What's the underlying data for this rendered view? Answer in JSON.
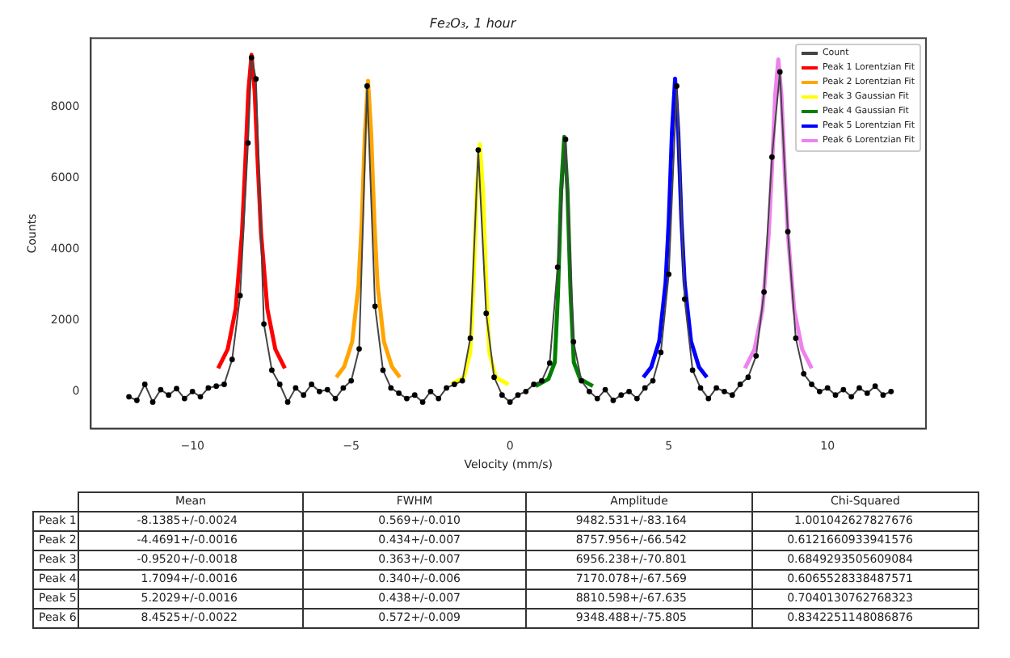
{
  "chart_data": {
    "type": "line",
    "title": "Fe₂O₃, 1 hour",
    "xlabel": "Velocity (mm/s)",
    "ylabel": "Counts",
    "xlim": [
      -13.2,
      13.1
    ],
    "ylim": [
      -1050,
      9950
    ],
    "xticks": [
      -10,
      -5,
      0,
      5,
      10
    ],
    "yticks": [
      0,
      2000,
      4000,
      6000,
      8000
    ],
    "grid": false,
    "legend": "top right",
    "line_style": "solid",
    "series": [
      {
        "name": "Count",
        "color": "#444444",
        "marker": "circle",
        "x": [
          -12,
          -11.75,
          -11.5,
          -11.25,
          -11,
          -10.75,
          -10.5,
          -10.25,
          -10,
          -9.75,
          -9.5,
          -9.25,
          -9,
          -8.75,
          -8.5,
          -8.25,
          -8.14,
          -8,
          -7.75,
          -7.5,
          -7.25,
          -7,
          -6.75,
          -6.5,
          -6.25,
          -6,
          -5.75,
          -5.5,
          -5.25,
          -5,
          -4.75,
          -4.5,
          -4.25,
          -4,
          -3.75,
          -3.5,
          -3.25,
          -3,
          -2.75,
          -2.5,
          -2.25,
          -2,
          -1.75,
          -1.5,
          -1.25,
          -1,
          -0.75,
          -0.5,
          -0.25,
          0,
          0.25,
          0.5,
          0.75,
          1,
          1.25,
          1.5,
          1.75,
          2,
          2.25,
          2.5,
          2.75,
          3,
          3.25,
          3.5,
          3.75,
          4,
          4.25,
          4.5,
          4.75,
          5,
          5.25,
          5.5,
          5.75,
          6,
          6.25,
          6.5,
          6.75,
          7,
          7.25,
          7.5,
          7.75,
          8,
          8.25,
          8.5,
          8.75,
          9,
          9.25,
          9.5,
          9.75,
          10,
          10.25,
          10.5,
          10.75,
          11,
          11.25,
          11.5,
          11.75,
          12
        ],
        "values": [
          -150,
          -250,
          200,
          -300,
          50,
          -100,
          80,
          -200,
          0,
          -150,
          100,
          150,
          200,
          900,
          2700,
          7000,
          9400,
          8800,
          1900,
          600,
          200,
          -300,
          100,
          -100,
          200,
          0,
          50,
          -200,
          100,
          300,
          1200,
          8600,
          2400,
          600,
          100,
          -50,
          -200,
          -100,
          -300,
          0,
          -200,
          100,
          200,
          300,
          1500,
          6800,
          2200,
          400,
          -100,
          -300,
          -100,
          0,
          200,
          300,
          800,
          3500,
          7100,
          1400,
          300,
          0,
          -200,
          50,
          -250,
          -100,
          0,
          -200,
          100,
          300,
          1100,
          3300,
          8600,
          2600,
          600,
          100,
          -200,
          100,
          0,
          -100,
          200,
          400,
          1000,
          2800,
          6600,
          9000,
          4500,
          1500,
          500,
          200,
          0,
          100,
          -100,
          50,
          -150,
          100,
          -50,
          150,
          -100,
          0
        ]
      },
      {
        "name": "Peak 1 Lorentzian Fit",
        "color": "#ff0000",
        "marker": "none",
        "x": [
          -9.19,
          -8.89,
          -8.64,
          -8.44,
          -8.34,
          -8.24,
          -8.14,
          -8.04,
          -7.94,
          -7.84,
          -7.64,
          -7.39,
          -7.09
        ],
        "values": [
          650,
          1190,
          2320,
          4460,
          6350,
          8440,
          9480,
          8440,
          6350,
          4460,
          2320,
          1190,
          650
        ]
      },
      {
        "name": "Peak 2 Lorentzian Fit",
        "color": "#ffa500",
        "marker": "none",
        "x": [
          -5.47,
          -5.22,
          -4.97,
          -4.77,
          -4.67,
          -4.57,
          -4.47,
          -4.37,
          -4.27,
          -4.17,
          -3.97,
          -3.72,
          -3.47
        ],
        "values": [
          400,
          700,
          1400,
          3000,
          4750,
          7250,
          8750,
          7250,
          4750,
          3000,
          1400,
          700,
          400
        ]
      },
      {
        "name": "Peak 3 Gaussian Fit",
        "color": "#ffff00",
        "marker": "none",
        "x": [
          -1.85,
          -1.45,
          -1.25,
          -1.15,
          -1.05,
          -0.95,
          -0.85,
          -0.75,
          -0.65,
          -0.45,
          -0.05
        ],
        "values": [
          200,
          400,
          1100,
          3000,
          5640,
          6960,
          5640,
          3000,
          1100,
          400,
          200
        ]
      },
      {
        "name": "Peak 4 Gaussian Fit",
        "color": "#008000",
        "marker": "none",
        "x": [
          0.81,
          1.21,
          1.41,
          1.51,
          1.61,
          1.71,
          1.81,
          1.91,
          2.01,
          2.21,
          2.61
        ],
        "values": [
          150,
          350,
          820,
          2730,
          5660,
          7170,
          5660,
          2730,
          820,
          350,
          150
        ]
      },
      {
        "name": "Peak 5 Lorentzian Fit",
        "color": "#0000ff",
        "marker": "none",
        "x": [
          4.2,
          4.45,
          4.7,
          4.9,
          5.0,
          5.1,
          5.2,
          5.3,
          5.4,
          5.5,
          5.7,
          5.95,
          6.2
        ],
        "values": [
          400,
          690,
          1420,
          3060,
          4800,
          7290,
          8810,
          7290,
          4800,
          3060,
          1420,
          690,
          400
        ]
      },
      {
        "name": "Peak 6 Lorentzian Fit",
        "color": "#ee82ee",
        "marker": "none",
        "x": [
          7.4,
          7.7,
          7.95,
          8.15,
          8.25,
          8.35,
          8.45,
          8.55,
          8.65,
          8.75,
          8.95,
          9.2,
          9.5
        ],
        "values": [
          650,
          1190,
          2300,
          4450,
          6260,
          8320,
          9350,
          8320,
          6260,
          4450,
          2300,
          1190,
          650
        ]
      }
    ],
    "annotations": [
      "Mean",
      "FWHM",
      "Amplitude",
      "Chi-Squared",
      "Peak 1",
      "-8.1385+/-0.0024",
      "0.569+/-0.010",
      "9482.531+/-83.164",
      "1.001042627827676",
      "Peak 2",
      "-4.4691+/-0.0016",
      "0.434+/-0.007",
      "8757.956+/-66.542",
      "0.6121660933941576",
      "Peak 3",
      "-0.9520+/-0.0018",
      "0.363+/-0.007",
      "6956.238+/-70.801",
      "0.6849293505609084",
      "Peak 4",
      "1.7094+/-0.0016",
      "0.340+/-0.006",
      "7170.078+/-67.569",
      "0.6065528338487571",
      "Peak 5",
      "5.2029+/-0.0016",
      "0.438+/-0.007",
      "8810.598+/-67.635",
      "0.7040130762768323",
      "Peak 6",
      "8.4525+/-0.0022",
      "0.572+/-0.009",
      "9348.488+/-75.805",
      "0.8342251148086876"
    ]
  }
}
